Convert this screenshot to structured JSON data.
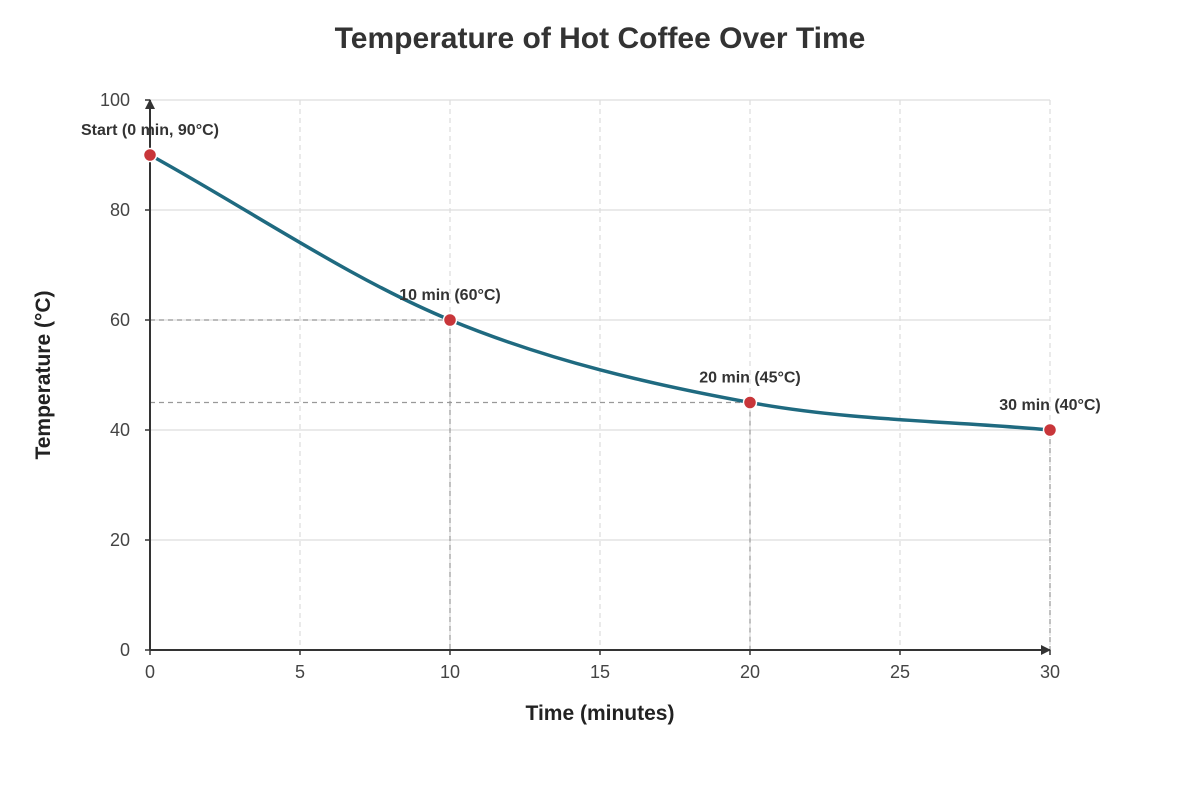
{
  "chart_data": {
    "type": "line",
    "title": "Temperature of Hot Coffee Over Time",
    "xlabel": "Time (minutes)",
    "ylabel": "Temperature (°C)",
    "xlim": [
      0,
      30
    ],
    "ylim": [
      0,
      100
    ],
    "x_ticks": [
      0,
      5,
      10,
      15,
      20,
      25,
      30
    ],
    "y_ticks": [
      0,
      20,
      40,
      60,
      80,
      100
    ],
    "grid": true,
    "series": [
      {
        "x": [
          0,
          10,
          20,
          30
        ],
        "y": [
          90,
          60,
          45,
          40
        ]
      }
    ],
    "annotations": [
      {
        "x": 0,
        "y": 90,
        "text": "Start (0 min, 90°C)"
      },
      {
        "x": 10,
        "y": 60,
        "text": "10 min (60°C)"
      },
      {
        "x": 20,
        "y": 45,
        "text": "20 min (45°C)"
      },
      {
        "x": 30,
        "y": 40,
        "text": "30 min (40°C)"
      }
    ],
    "colors": {
      "line": "#1f6a80",
      "points": "#c8363a",
      "axis": "#333333",
      "grid": "#dddddd",
      "guide": "#999999"
    }
  }
}
